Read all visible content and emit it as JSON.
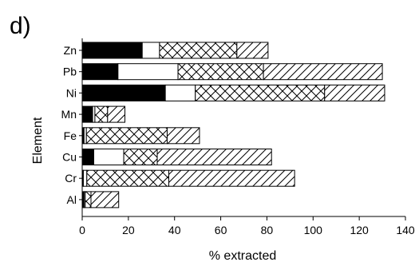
{
  "panel_label": "d)",
  "chart_data": {
    "type": "bar",
    "orientation": "horizontal",
    "stacked": true,
    "xlabel": "% extracted",
    "ylabel": "Element",
    "xlim": [
      0,
      140
    ],
    "x_ticks": [
      "0",
      "20",
      "40",
      "60",
      "80",
      "100",
      "120",
      "140"
    ],
    "categories": [
      "Zn",
      "Pb",
      "Ni",
      "Mn",
      "Fe",
      "Cu",
      "Cr",
      "Al"
    ],
    "series": [
      {
        "pattern": "solid-black",
        "values": [
          26,
          15.5,
          36,
          4.5,
          0.8,
          5,
          0.5,
          0.8
        ]
      },
      {
        "pattern": "blank",
        "values": [
          7.5,
          26,
          13,
          1,
          1,
          13,
          1.5,
          0.5
        ]
      },
      {
        "pattern": "cross-hatch",
        "values": [
          33.5,
          37,
          56,
          5.5,
          35,
          14.5,
          35.5,
          2.5
        ]
      },
      {
        "pattern": "diagonal-hatch",
        "values": [
          13.5,
          51.5,
          26,
          7.5,
          14,
          49.5,
          54.5,
          12
        ]
      }
    ],
    "grid": false,
    "legend": "none"
  }
}
